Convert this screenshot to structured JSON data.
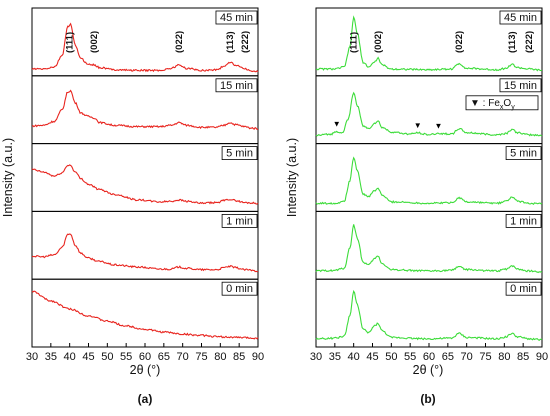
{
  "chart_data": [
    {
      "type": "line",
      "panel_label": "(a)",
      "xlabel": "2θ (°)",
      "ylabel": "Intensity (a.u.)",
      "xlim": [
        30,
        90
      ],
      "x_ticks": [
        30,
        35,
        40,
        45,
        50,
        55,
        60,
        65,
        70,
        75,
        80,
        85,
        90
      ],
      "series_color": "#e8251f",
      "peak_labels": [
        {
          "text": "(111)",
          "x": 40,
          "panel": "45 min"
        },
        {
          "text": "(002)",
          "x": 46.5,
          "panel": "45 min"
        },
        {
          "text": "(022)",
          "x": 69,
          "panel": "45 min"
        },
        {
          "text": "(113)",
          "x": 82.5,
          "panel": "45 min"
        },
        {
          "text": "(222)",
          "x": 86.5,
          "panel": "45 min"
        }
      ],
      "series": [
        {
          "name": "45 min",
          "points": [
            [
              30,
              0.1
            ],
            [
              33,
              0.1
            ],
            [
              36,
              0.13
            ],
            [
              38,
              0.3
            ],
            [
              39.5,
              0.72
            ],
            [
              40.2,
              0.76
            ],
            [
              41.5,
              0.45
            ],
            [
              43,
              0.25
            ],
            [
              45,
              0.17
            ],
            [
              46.5,
              0.16
            ],
            [
              48,
              0.12
            ],
            [
              52,
              0.09
            ],
            [
              58,
              0.08
            ],
            [
              64,
              0.08
            ],
            [
              67,
              0.11
            ],
            [
              69,
              0.16
            ],
            [
              71,
              0.11
            ],
            [
              75,
              0.08
            ],
            [
              79,
              0.09
            ],
            [
              81,
              0.14
            ],
            [
              82.5,
              0.2
            ],
            [
              84,
              0.16
            ],
            [
              86.5,
              0.11
            ],
            [
              88,
              0.07
            ],
            [
              90,
              0.06
            ]
          ]
        },
        {
          "name": "15 min",
          "points": [
            [
              30,
              0.26
            ],
            [
              33,
              0.27
            ],
            [
              36,
              0.33
            ],
            [
              38,
              0.5
            ],
            [
              39.5,
              0.76
            ],
            [
              40.2,
              0.78
            ],
            [
              41.5,
              0.6
            ],
            [
              43,
              0.45
            ],
            [
              45,
              0.4
            ],
            [
              46.5,
              0.38
            ],
            [
              48,
              0.31
            ],
            [
              52,
              0.27
            ],
            [
              58,
              0.25
            ],
            [
              64,
              0.25
            ],
            [
              67,
              0.27
            ],
            [
              69,
              0.31
            ],
            [
              71,
              0.27
            ],
            [
              75,
              0.24
            ],
            [
              79,
              0.24
            ],
            [
              81,
              0.27
            ],
            [
              82.5,
              0.31
            ],
            [
              84,
              0.28
            ],
            [
              86.5,
              0.25
            ],
            [
              88,
              0.23
            ],
            [
              90,
              0.22
            ]
          ]
        },
        {
          "name": "5 min",
          "points": [
            [
              30,
              0.62
            ],
            [
              33,
              0.58
            ],
            [
              36,
              0.52
            ],
            [
              38,
              0.57
            ],
            [
              39.5,
              0.68
            ],
            [
              40.2,
              0.68
            ],
            [
              41.5,
              0.58
            ],
            [
              43,
              0.48
            ],
            [
              45,
              0.4
            ],
            [
              48,
              0.32
            ],
            [
              52,
              0.25
            ],
            [
              58,
              0.17
            ],
            [
              64,
              0.14
            ],
            [
              67,
              0.15
            ],
            [
              69,
              0.17
            ],
            [
              71,
              0.15
            ],
            [
              75,
              0.12
            ],
            [
              79,
              0.13
            ],
            [
              81,
              0.16
            ],
            [
              82.5,
              0.18
            ],
            [
              84,
              0.16
            ],
            [
              86.5,
              0.13
            ],
            [
              90,
              0.12
            ]
          ]
        },
        {
          "name": "1 min",
          "points": [
            [
              30,
              0.34
            ],
            [
              33,
              0.33
            ],
            [
              36,
              0.36
            ],
            [
              38,
              0.47
            ],
            [
              39.5,
              0.66
            ],
            [
              40.2,
              0.67
            ],
            [
              41.5,
              0.5
            ],
            [
              43,
              0.38
            ],
            [
              45,
              0.31
            ],
            [
              48,
              0.26
            ],
            [
              52,
              0.21
            ],
            [
              58,
              0.18
            ],
            [
              64,
              0.15
            ],
            [
              67,
              0.15
            ],
            [
              69,
              0.18
            ],
            [
              71,
              0.16
            ],
            [
              75,
              0.14
            ],
            [
              79,
              0.14
            ],
            [
              81,
              0.17
            ],
            [
              82.5,
              0.19
            ],
            [
              84,
              0.17
            ],
            [
              86.5,
              0.14
            ],
            [
              90,
              0.12
            ]
          ]
        },
        {
          "name": "0 min",
          "points": [
            [
              30,
              0.82
            ],
            [
              35,
              0.68
            ],
            [
              40,
              0.56
            ],
            [
              45,
              0.46
            ],
            [
              50,
              0.38
            ],
            [
              55,
              0.31
            ],
            [
              60,
              0.26
            ],
            [
              65,
              0.22
            ],
            [
              70,
              0.19
            ],
            [
              75,
              0.17
            ],
            [
              80,
              0.15
            ],
            [
              85,
              0.14
            ],
            [
              90,
              0.13
            ]
          ]
        }
      ]
    },
    {
      "type": "line",
      "panel_label": "(b)",
      "xlabel": "2θ (°)",
      "ylabel": "Intensity (a.u.)",
      "xlim": [
        30,
        90
      ],
      "x_ticks": [
        30,
        35,
        40,
        45,
        50,
        55,
        60,
        65,
        70,
        75,
        80,
        85,
        90
      ],
      "series_color": "#3ddc3a",
      "peak_labels": [
        {
          "text": "(111)",
          "x": 40,
          "panel": "45 min"
        },
        {
          "text": "(002)",
          "x": 46.5,
          "panel": "45 min"
        },
        {
          "text": "(022)",
          "x": 68,
          "panel": "45 min"
        },
        {
          "text": "(113)",
          "x": 82,
          "panel": "45 min"
        },
        {
          "text": "(222)",
          "x": 86.5,
          "panel": "45 min"
        }
      ],
      "marker_legend": {
        "symbol": "▼",
        "text": ": Fe",
        "sub1": "x",
        "mid": "O",
        "sub2": "y",
        "panel": "15 min"
      },
      "markers": [
        35.5,
        57,
        62.5
      ],
      "series": [
        {
          "name": "45 min",
          "points": [
            [
              30,
              0.1
            ],
            [
              35,
              0.1
            ],
            [
              37.5,
              0.13
            ],
            [
              39,
              0.42
            ],
            [
              40,
              0.86
            ],
            [
              41,
              0.62
            ],
            [
              42.5,
              0.2
            ],
            [
              44,
              0.13
            ],
            [
              45.5,
              0.2
            ],
            [
              46.5,
              0.26
            ],
            [
              47.5,
              0.16
            ],
            [
              50,
              0.1
            ],
            [
              60,
              0.09
            ],
            [
              66,
              0.1
            ],
            [
              68,
              0.18
            ],
            [
              70,
              0.11
            ],
            [
              78,
              0.09
            ],
            [
              80.5,
              0.11
            ],
            [
              82,
              0.17
            ],
            [
              83.5,
              0.12
            ],
            [
              86.5,
              0.1
            ],
            [
              90,
              0.08
            ]
          ]
        },
        {
          "name": "15 min",
          "points": [
            [
              30,
              0.12
            ],
            [
              34,
              0.14
            ],
            [
              35.5,
              0.18
            ],
            [
              37,
              0.16
            ],
            [
              38.5,
              0.35
            ],
            [
              40,
              0.75
            ],
            [
              41,
              0.56
            ],
            [
              42.5,
              0.26
            ],
            [
              44,
              0.22
            ],
            [
              45.5,
              0.3
            ],
            [
              46.5,
              0.33
            ],
            [
              47.5,
              0.24
            ],
            [
              50,
              0.17
            ],
            [
              55,
              0.14
            ],
            [
              57,
              0.16
            ],
            [
              60,
              0.13
            ],
            [
              62.5,
              0.15
            ],
            [
              66,
              0.14
            ],
            [
              68,
              0.22
            ],
            [
              70,
              0.16
            ],
            [
              78,
              0.13
            ],
            [
              80.5,
              0.15
            ],
            [
              82,
              0.21
            ],
            [
              83.5,
              0.16
            ],
            [
              86.5,
              0.13
            ],
            [
              90,
              0.12
            ]
          ]
        },
        {
          "name": "5 min",
          "points": [
            [
              30,
              0.12
            ],
            [
              35,
              0.12
            ],
            [
              37.5,
              0.15
            ],
            [
              39,
              0.45
            ],
            [
              40,
              0.8
            ],
            [
              41,
              0.6
            ],
            [
              42.5,
              0.25
            ],
            [
              44,
              0.22
            ],
            [
              45.5,
              0.3
            ],
            [
              46.5,
              0.34
            ],
            [
              47.5,
              0.24
            ],
            [
              50,
              0.14
            ],
            [
              60,
              0.12
            ],
            [
              66,
              0.13
            ],
            [
              68,
              0.2
            ],
            [
              70,
              0.14
            ],
            [
              78,
              0.12
            ],
            [
              80.5,
              0.15
            ],
            [
              82,
              0.21
            ],
            [
              83.5,
              0.15
            ],
            [
              86.5,
              0.12
            ],
            [
              90,
              0.11
            ]
          ]
        },
        {
          "name": "1 min",
          "points": [
            [
              30,
              0.12
            ],
            [
              35,
              0.13
            ],
            [
              37.5,
              0.16
            ],
            [
              39,
              0.46
            ],
            [
              40,
              0.8
            ],
            [
              41,
              0.6
            ],
            [
              42.5,
              0.25
            ],
            [
              44,
              0.21
            ],
            [
              45.5,
              0.3
            ],
            [
              46.5,
              0.34
            ],
            [
              47.5,
              0.23
            ],
            [
              50,
              0.14
            ],
            [
              60,
              0.12
            ],
            [
              66,
              0.13
            ],
            [
              68,
              0.19
            ],
            [
              70,
              0.14
            ],
            [
              78,
              0.12
            ],
            [
              80.5,
              0.15
            ],
            [
              82,
              0.2
            ],
            [
              83.5,
              0.15
            ],
            [
              86.5,
              0.12
            ],
            [
              90,
              0.11
            ]
          ]
        },
        {
          "name": "0 min",
          "points": [
            [
              30,
              0.12
            ],
            [
              35,
              0.13
            ],
            [
              37.5,
              0.16
            ],
            [
              39,
              0.46
            ],
            [
              40,
              0.82
            ],
            [
              41,
              0.62
            ],
            [
              42.5,
              0.26
            ],
            [
              44,
              0.21
            ],
            [
              45.5,
              0.31
            ],
            [
              46.5,
              0.35
            ],
            [
              47.5,
              0.24
            ],
            [
              50,
              0.14
            ],
            [
              60,
              0.12
            ],
            [
              66,
              0.13
            ],
            [
              68,
              0.2
            ],
            [
              70,
              0.14
            ],
            [
              78,
              0.12
            ],
            [
              80.5,
              0.15
            ],
            [
              82,
              0.2
            ],
            [
              83.5,
              0.15
            ],
            [
              86.5,
              0.12
            ],
            [
              90,
              0.11
            ]
          ]
        }
      ]
    }
  ]
}
